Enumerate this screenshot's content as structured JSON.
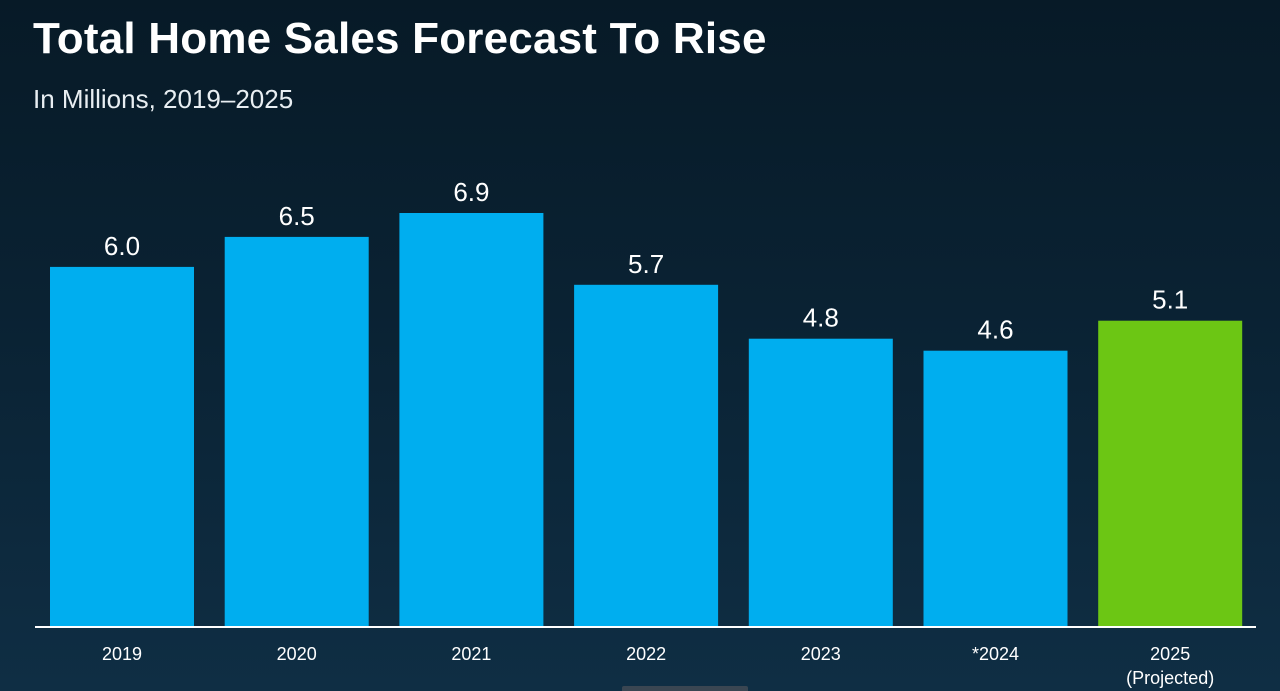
{
  "chart_data": {
    "type": "bar",
    "title": "Total Home Sales Forecast To Rise",
    "subtitle": "In Millions, 2019–2025",
    "categories": [
      "2019",
      "2020",
      "2021",
      "2022",
      "2023",
      "*2024",
      "2025"
    ],
    "category_sublabels": [
      "",
      "",
      "",
      "",
      "",
      "",
      "(Projected)"
    ],
    "values": [
      6.0,
      6.5,
      6.9,
      5.7,
      4.8,
      4.6,
      5.1
    ],
    "value_labels": [
      "6.0",
      "6.5",
      "6.9",
      "5.7",
      "4.8",
      "4.6",
      "5.1"
    ],
    "highlight": [
      false,
      false,
      false,
      false,
      false,
      false,
      true
    ],
    "ylim": [
      0,
      6.9
    ],
    "xlabel": "",
    "ylabel": "",
    "grid": false,
    "legend": "none",
    "colors": {
      "bar": "#00aeef",
      "highlight": "#6cc614",
      "axis": "#ffffff",
      "text": "#ffffff"
    }
  }
}
